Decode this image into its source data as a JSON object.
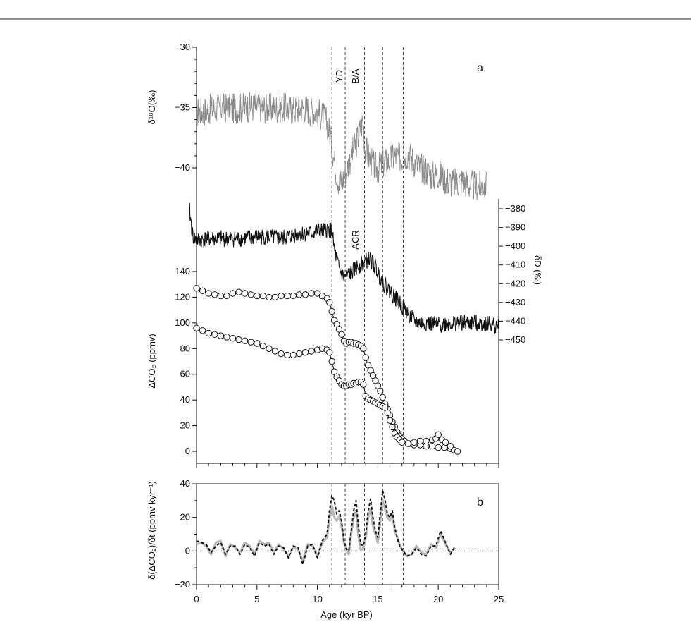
{
  "chart_data": [
    {
      "panel": "a",
      "type": "line",
      "xlabel": "Age (kyr BP)",
      "xlim": [
        0,
        25
      ],
      "x_ticks": [
        0,
        5,
        10,
        15,
        20,
        25
      ],
      "event_labels": [
        "YD",
        "B/A",
        "ACR"
      ],
      "event_lines_x": [
        11.2,
        12.3,
        13.9,
        15.4,
        17.1
      ],
      "colors": {
        "delta18O": "#8a8a8a",
        "deltaD": "#111111",
        "co2": "#111111"
      },
      "axes": [
        {
          "ylabel": "δ¹⁸O(‰)",
          "ylim": [
            -43,
            -30
          ],
          "ticks": [
            -30,
            -35,
            -40
          ],
          "side": "left"
        },
        {
          "ylabel": "δD (‰)",
          "ylim": [
            -450,
            -375
          ],
          "ticks": [
            -380,
            -390,
            -400,
            -410,
            -420,
            -430,
            -440,
            -450
          ],
          "side": "right"
        },
        {
          "ylabel": "ΔCO₂ (ppmv)",
          "ylim": [
            -10,
            140
          ],
          "ticks": [
            0,
            20,
            40,
            60,
            80,
            100,
            120,
            140
          ],
          "side": "left"
        }
      ],
      "series": [
        {
          "name": "",
          "kind": "delta18O",
          "x": [
            0,
            1,
            2,
            3,
            4,
            5,
            6,
            7,
            8,
            9,
            9.5,
            10,
            10.5,
            10.8,
            11,
            11.2,
            11.5,
            11.8,
            12.1,
            12.4,
            12.8,
            13.2,
            13.6,
            13.8,
            13.9,
            14.2,
            14.6,
            15,
            15.5,
            16,
            16.5,
            17,
            17.5,
            18,
            18.5,
            19,
            19.5,
            20,
            20.5,
            21,
            21.5,
            22,
            22.5,
            23,
            23.5,
            24
          ],
          "y": [
            -35.4,
            -35.2,
            -35.0,
            -35.1,
            -35.0,
            -34.9,
            -35.1,
            -35.0,
            -35.2,
            -35.0,
            -35.3,
            -35.4,
            -35.8,
            -36.3,
            -37.0,
            -38.2,
            -40.0,
            -41.3,
            -41.0,
            -40.2,
            -39.0,
            -38.0,
            -36.6,
            -36.0,
            -38.2,
            -39.0,
            -39.8,
            -40.1,
            -39.6,
            -39.4,
            -39.0,
            -39.2,
            -38.8,
            -39.5,
            -40.0,
            -40.2,
            -40.7,
            -40.5,
            -40.9,
            -41.2,
            -41.3,
            -41.0,
            -41.4,
            -41.5,
            -41.5,
            -41.4
          ]
        },
        {
          "name": "",
          "kind": "deltaD",
          "x": [
            -0.6,
            -0.3,
            0,
            1,
            2,
            3,
            4,
            5,
            6,
            7,
            8,
            9,
            9.5,
            10,
            10.5,
            10.8,
            11,
            11.2,
            11.4,
            11.8,
            12.2,
            12.6,
            13,
            13.5,
            14,
            14.3,
            14.6,
            15,
            15.5,
            16,
            16.5,
            17,
            17.5,
            18,
            18.5,
            19,
            20,
            21,
            22,
            23,
            24,
            25
          ],
          "y": [
            -380,
            -395,
            -397,
            -396,
            -396,
            -396,
            -396,
            -395,
            -395,
            -396,
            -394,
            -393,
            -393,
            -392,
            -392,
            -391,
            -391,
            -392,
            -402,
            -412,
            -417,
            -415,
            -413,
            -410,
            -408,
            -407,
            -409,
            -414,
            -420,
            -424,
            -428,
            -432,
            -436,
            -440,
            -441,
            -441,
            -442,
            -441,
            -441,
            -441,
            -441,
            -443
          ]
        },
        {
          "name": "",
          "kind": "co2-upper",
          "x": [
            0,
            0.5,
            1,
            1.5,
            2,
            2.5,
            3,
            3.5,
            4,
            4.5,
            5,
            5.5,
            6,
            6.5,
            7,
            7.5,
            8,
            8.5,
            9,
            9.5,
            10,
            10.4,
            10.8,
            11,
            11.2,
            11.4,
            11.6,
            11.8,
            12,
            12.2,
            12.4,
            12.6,
            12.8,
            13,
            13.2,
            13.4,
            13.6,
            13.8,
            14,
            14.2,
            14.4,
            14.6,
            14.8,
            15,
            15.2,
            15.4,
            15.6,
            15.8,
            16,
            16.2,
            16.4,
            16.6,
            16.8,
            17,
            17.2,
            17.6,
            18,
            18.5,
            19,
            19.5,
            20,
            20.5,
            21,
            21.3,
            21.6
          ],
          "y": [
            127,
            125,
            123,
            122,
            121,
            121,
            123,
            124,
            123,
            122,
            121,
            121,
            120,
            120,
            121,
            121,
            121,
            122,
            122,
            123,
            123,
            121,
            119,
            116,
            109,
            102,
            99,
            95,
            91,
            86,
            84,
            85,
            85,
            84,
            84,
            83,
            82,
            80,
            73,
            67,
            63,
            59,
            55,
            51,
            47,
            42,
            37,
            33,
            28,
            23,
            19,
            15,
            12,
            10,
            8,
            6,
            5,
            5,
            4,
            4,
            3,
            3,
            2,
            1,
            0
          ]
        },
        {
          "name": "",
          "kind": "co2-lower",
          "x": [
            0,
            0.5,
            1,
            1.5,
            2,
            2.5,
            3,
            3.5,
            4,
            4.5,
            5,
            5.5,
            6,
            6.5,
            7,
            7.5,
            8,
            8.5,
            9,
            9.5,
            10,
            10.4,
            10.8,
            11,
            11.2,
            11.4,
            11.6,
            11.8,
            12,
            12.2,
            12.4,
            12.6,
            12.8,
            13,
            13.2,
            13.4,
            13.6,
            13.8,
            14,
            14.2,
            14.4,
            14.6,
            14.8,
            15,
            15.2,
            15.4,
            15.6,
            15.8,
            16,
            16.2,
            16.4,
            16.6,
            16.8,
            17,
            17.5,
            18,
            18.5,
            19,
            19.5,
            19.8,
            20,
            20.3,
            20.6,
            21
          ],
          "y": [
            96,
            94,
            92,
            91,
            90,
            89,
            88,
            87,
            86,
            85,
            84,
            82,
            80,
            78,
            76,
            75,
            75,
            76,
            77,
            78,
            79,
            80,
            79,
            77,
            70,
            62,
            58,
            55,
            52,
            51,
            51,
            52,
            52,
            53,
            53,
            54,
            54,
            52,
            43,
            41,
            40,
            39,
            38,
            37,
            36,
            35,
            34,
            30,
            24,
            19,
            14,
            11,
            9,
            7,
            6,
            7,
            8,
            8,
            9,
            10,
            13,
            9,
            7,
            4
          ]
        }
      ]
    },
    {
      "panel": "b",
      "type": "line",
      "xlabel": "Age (kyr BP)",
      "ylabel": "δ(ΔCO₂)/δt (ppmv kyr⁻¹)",
      "xlim": [
        0,
        25
      ],
      "ylim": [
        -20,
        40
      ],
      "x_ticks": [
        0,
        5,
        10,
        15,
        20,
        25
      ],
      "y_ticks": [
        -20,
        0,
        20,
        40
      ],
      "zero_line": true,
      "colors": {
        "gray": "#b8b8b8",
        "dashed": "#111111"
      },
      "series": [
        {
          "name": "",
          "style": "gray",
          "x": [
            0,
            0.4,
            0.8,
            1.2,
            1.6,
            2,
            2.4,
            2.8,
            3.2,
            3.6,
            4,
            4.4,
            4.8,
            5.2,
            5.6,
            6,
            6.4,
            6.8,
            7.2,
            7.6,
            8,
            8.4,
            8.8,
            9.2,
            9.6,
            10,
            10.4,
            10.8,
            11,
            11.2,
            11.4,
            11.6,
            11.8,
            12,
            12.2,
            12.4,
            12.6,
            12.8,
            13,
            13.2,
            13.4,
            13.6,
            13.8,
            14,
            14.2,
            14.4,
            14.6,
            14.8,
            15,
            15.2,
            15.4,
            15.6,
            15.8,
            16,
            16.2,
            16.4,
            16.6,
            16.8,
            17,
            17.4,
            17.8,
            18.2,
            18.6,
            19,
            19.4,
            19.8,
            20.2,
            20.6,
            21,
            21.4
          ],
          "y": [
            4,
            5,
            3,
            -2,
            5,
            6,
            -3,
            4,
            2,
            -1,
            5,
            3,
            -2,
            6,
            4,
            5,
            -1,
            4,
            1,
            -3,
            2,
            1,
            -6,
            4,
            3,
            -3,
            5,
            8,
            20,
            27,
            20,
            18,
            21,
            15,
            5,
            0,
            -2,
            10,
            20,
            24,
            9,
            0,
            2,
            8,
            20,
            25,
            15,
            10,
            5,
            18,
            30,
            25,
            20,
            18,
            22,
            12,
            8,
            4,
            1,
            -3,
            -2,
            3,
            -1,
            -2,
            4,
            2,
            10,
            4,
            -1,
            2
          ]
        },
        {
          "name": "",
          "style": "dashed",
          "x": [
            0,
            0.4,
            0.8,
            1.2,
            1.6,
            2,
            2.4,
            2.8,
            3.2,
            3.6,
            4,
            4.4,
            4.8,
            5.2,
            5.6,
            6,
            6.4,
            6.8,
            7.2,
            7.6,
            8,
            8.4,
            8.8,
            9.2,
            9.6,
            10,
            10.4,
            10.8,
            11,
            11.2,
            11.4,
            11.6,
            11.8,
            12,
            12.2,
            12.4,
            12.6,
            12.8,
            13,
            13.2,
            13.4,
            13.6,
            13.8,
            14,
            14.2,
            14.4,
            14.6,
            14.8,
            15,
            15.2,
            15.4,
            15.6,
            15.8,
            16,
            16.2,
            16.4,
            16.6,
            16.8,
            17,
            17.4,
            17.8,
            18.2,
            18.6,
            19,
            19.4,
            19.8,
            20.2,
            20.6,
            21,
            21.4
          ],
          "y": [
            6,
            5,
            4,
            -1,
            3,
            5,
            -2,
            3,
            3,
            -2,
            4,
            2,
            -3,
            5,
            3,
            4,
            -2,
            3,
            2,
            -4,
            3,
            2,
            -8,
            3,
            4,
            -4,
            6,
            10,
            24,
            33,
            30,
            22,
            24,
            18,
            6,
            1,
            0,
            12,
            24,
            30,
            14,
            4,
            3,
            10,
            24,
            31,
            20,
            12,
            8,
            22,
            36,
            30,
            22,
            20,
            24,
            14,
            8,
            3,
            1,
            -3,
            -2,
            2,
            -2,
            -3,
            3,
            3,
            12,
            5,
            -2,
            3
          ]
        }
      ]
    }
  ]
}
